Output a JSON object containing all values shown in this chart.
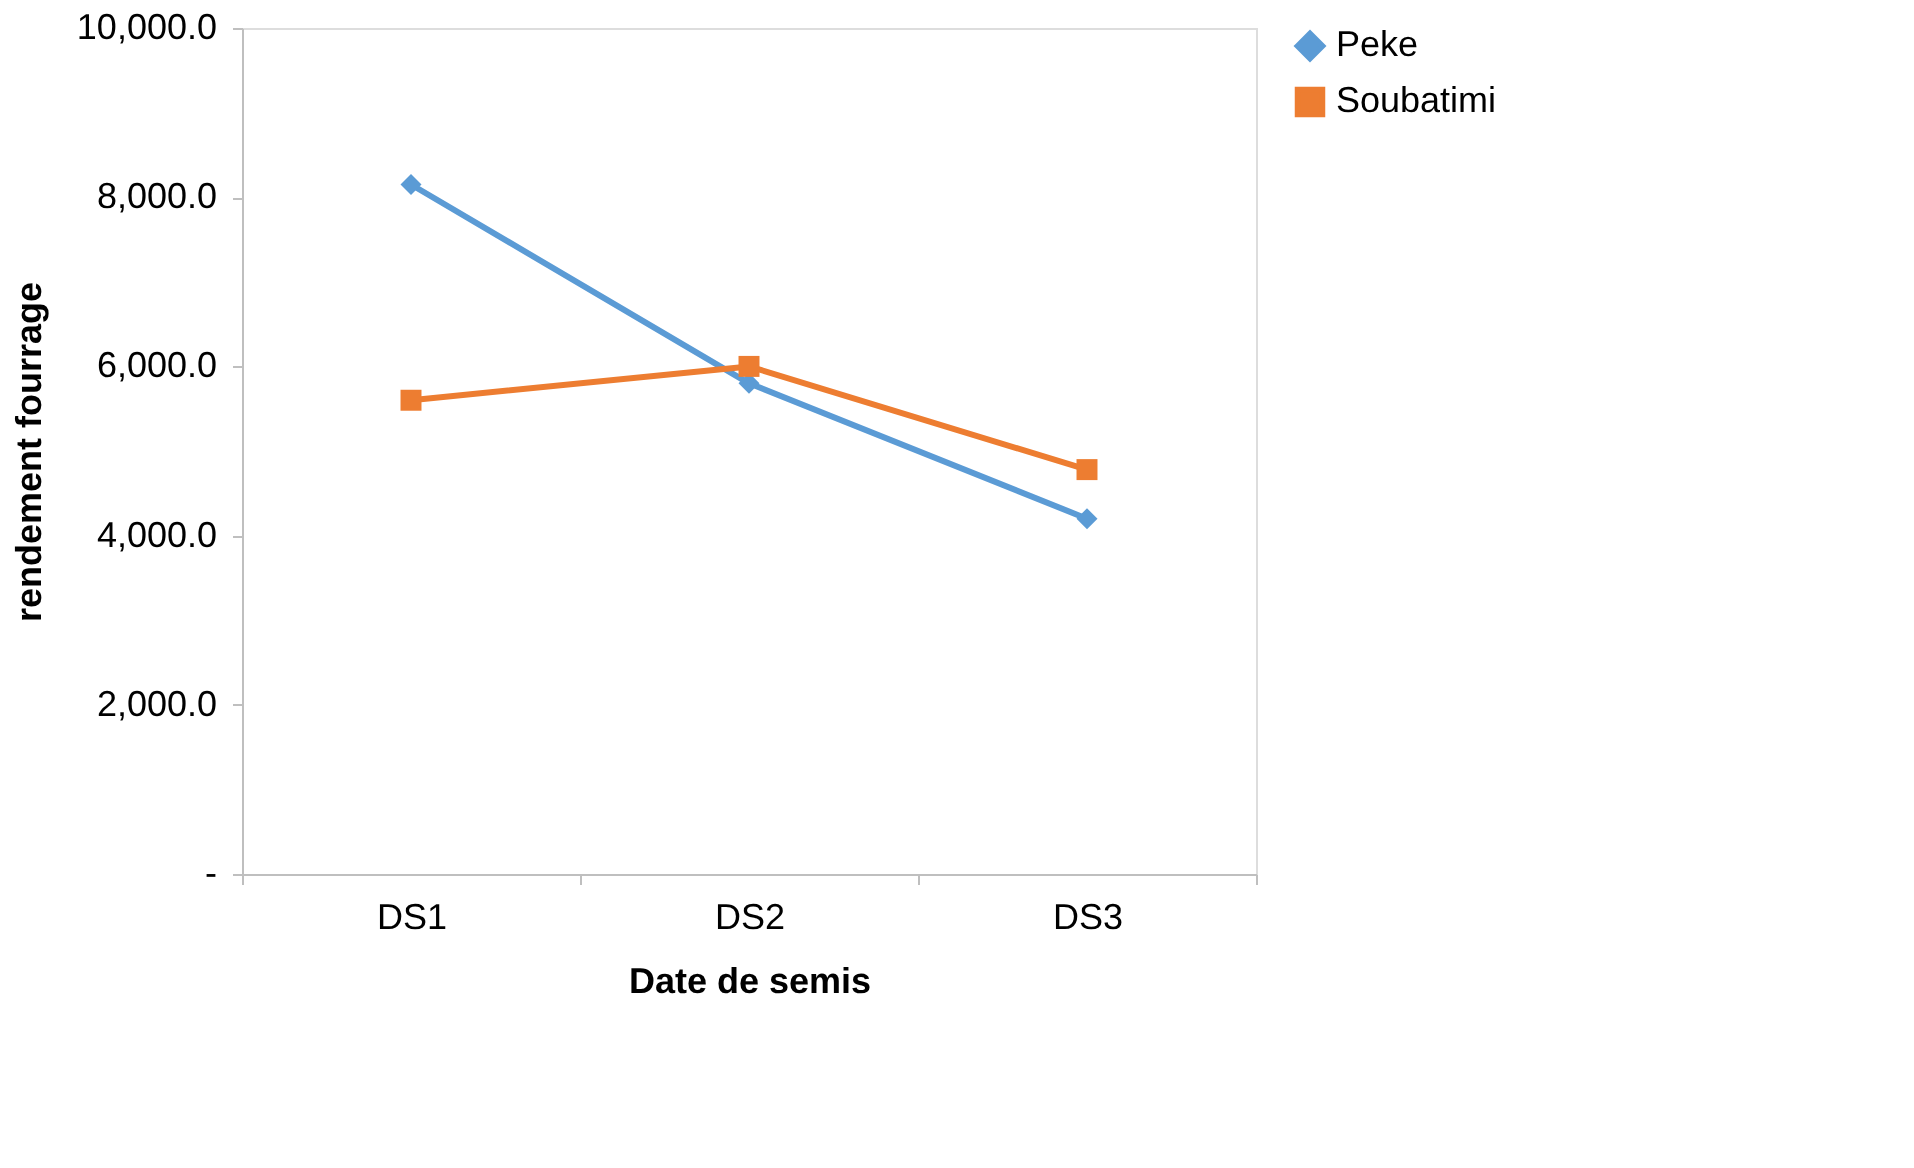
{
  "chart_data": {
    "type": "line",
    "xlabel": "Date de semis",
    "ylabel": "rendement fourrage",
    "categories": [
      "DS1",
      "DS2",
      "DS3"
    ],
    "series": [
      {
        "name": "Peke",
        "color": "#5b9bd5",
        "marker": "diamond",
        "values": [
          8150,
          5800,
          4200
        ]
      },
      {
        "name": "Soubatimi",
        "color": "#ed7d31",
        "marker": "square",
        "values": [
          5600,
          6000,
          4780
        ]
      }
    ],
    "ylim": [
      0,
      10000
    ],
    "yticks": [
      {
        "value": 0,
        "label": "-"
      },
      {
        "value": 2000,
        "label": "2,000.0"
      },
      {
        "value": 4000,
        "label": "4,000.0"
      },
      {
        "value": 6000,
        "label": "6,000.0"
      },
      {
        "value": 8000,
        "label": "8,000.0"
      },
      {
        "value": 10000,
        "label": "10,000.0"
      }
    ],
    "grid": false,
    "legend": "right",
    "line_style": "solid"
  }
}
